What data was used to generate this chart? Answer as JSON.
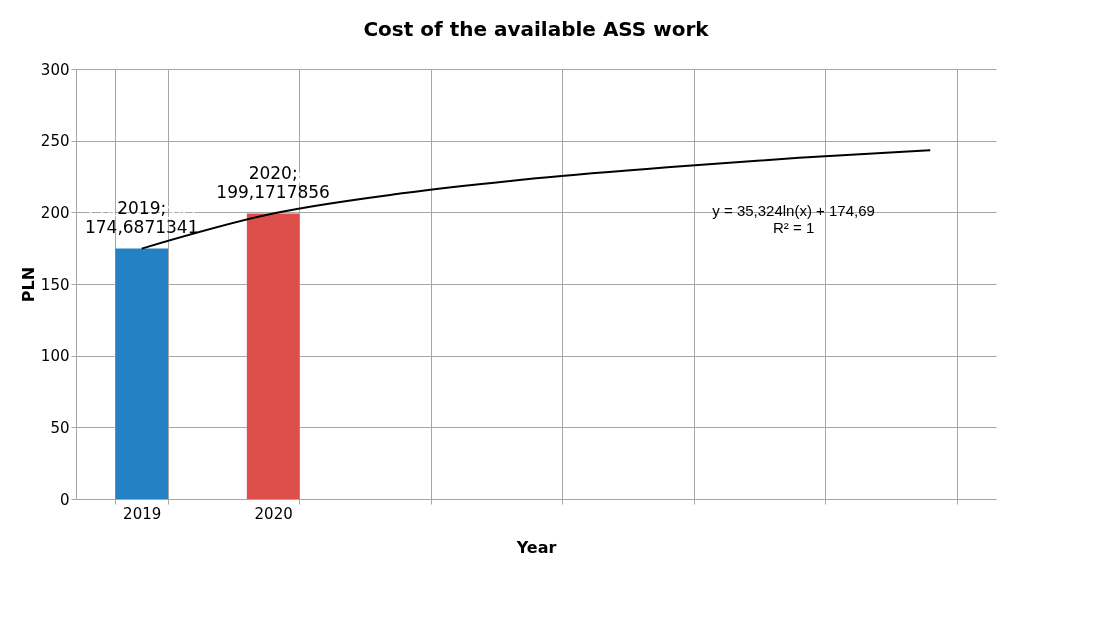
{
  "chart_data": {
    "type": "bar",
    "title": "Cost of the available ASS work",
    "xlabel": "Year",
    "ylabel": "PLN",
    "categories": [
      "2019",
      "2020",
      null,
      null,
      null,
      null,
      null
    ],
    "values": [
      174.6871341,
      199.1717856,
      null,
      null,
      null,
      null,
      null
    ],
    "colors": [
      "#2381c4",
      "#de4f4c",
      null,
      null,
      null,
      null,
      null
    ],
    "value_labels": [
      "2019; 174,6871341",
      "2020; 199,1717856",
      null,
      null,
      null,
      null,
      null
    ],
    "series": [
      {
        "type": "line",
        "color": "#000000",
        "values": [
          174.7,
          199.2,
          213.5,
          223.7,
          231.5,
          238,
          243.4
        ]
      }
    ],
    "annotations": [
      "y = 35,324ln(x) + 174,69 R² = 1"
    ],
    "ylim": [
      0,
      300
    ],
    "yticks": [
      0,
      50,
      100,
      150,
      200,
      250,
      300
    ],
    "grid": true
  }
}
